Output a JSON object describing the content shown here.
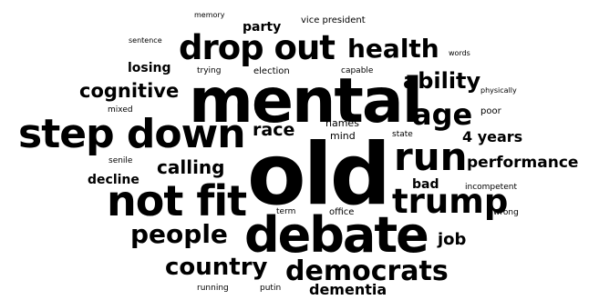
{
  "word_cloud": {
    "words": [
      {
        "id": "old",
        "text": "old"
      },
      {
        "id": "mental",
        "text": "mental"
      },
      {
        "id": "debate",
        "text": "debate"
      },
      {
        "id": "step-down",
        "text": "step down"
      },
      {
        "id": "not-fit",
        "text": "not fit"
      },
      {
        "id": "drop-out",
        "text": "drop out"
      },
      {
        "id": "run",
        "text": "run"
      },
      {
        "id": "trump",
        "text": "trump"
      },
      {
        "id": "democrats",
        "text": "democrats"
      },
      {
        "id": "age",
        "text": "age"
      },
      {
        "id": "health",
        "text": "health"
      },
      {
        "id": "people",
        "text": "people"
      },
      {
        "id": "country",
        "text": "country"
      },
      {
        "id": "cognitive",
        "text": "cognitive"
      },
      {
        "id": "ability",
        "text": "ability"
      },
      {
        "id": "calling",
        "text": "calling"
      },
      {
        "id": "performance",
        "text": "performance"
      },
      {
        "id": "race",
        "text": "race"
      },
      {
        "id": "4-years",
        "text": "4 years"
      },
      {
        "id": "dementia",
        "text": "dementia"
      },
      {
        "id": "job",
        "text": "job"
      },
      {
        "id": "decline",
        "text": "decline"
      },
      {
        "id": "bad",
        "text": "bad"
      },
      {
        "id": "losing",
        "text": "losing"
      },
      {
        "id": "party",
        "text": "party"
      },
      {
        "id": "mind",
        "text": "mind"
      },
      {
        "id": "names",
        "text": "names"
      },
      {
        "id": "election",
        "text": "election"
      },
      {
        "id": "vice-president",
        "text": "vice president"
      },
      {
        "id": "trying",
        "text": "trying"
      },
      {
        "id": "capable",
        "text": "capable"
      },
      {
        "id": "poor",
        "text": "poor"
      },
      {
        "id": "office",
        "text": "office"
      },
      {
        "id": "state",
        "text": "state"
      },
      {
        "id": "incompetent",
        "text": "incompetent"
      },
      {
        "id": "wrong",
        "text": "wrong"
      },
      {
        "id": "term",
        "text": "term"
      },
      {
        "id": "senile",
        "text": "senile"
      },
      {
        "id": "mixed",
        "text": "mixed"
      },
      {
        "id": "physically",
        "text": "physically"
      },
      {
        "id": "words",
        "text": "words"
      },
      {
        "id": "sentence",
        "text": "sentence"
      },
      {
        "id": "memory",
        "text": "memory"
      },
      {
        "id": "running",
        "text": "running"
      },
      {
        "id": "putin",
        "text": "putin"
      }
    ]
  }
}
